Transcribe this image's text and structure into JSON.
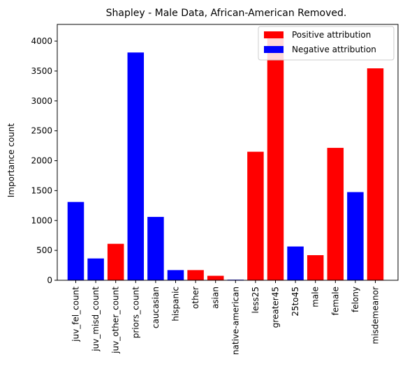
{
  "chart_data": {
    "type": "bar",
    "title": "Shapley - Male Data, African-American Removed.",
    "xlabel": "",
    "ylabel": "Importance count",
    "ylim": [
      0,
      4280
    ],
    "yticks": [
      0,
      500,
      1000,
      1500,
      2000,
      2500,
      3000,
      3500,
      4000
    ],
    "grid": false,
    "legend_placement": "top-right",
    "colors": {
      "positive": "#ff0000",
      "negative": "#0000ff"
    },
    "legend": [
      {
        "label": "Positive attribution",
        "key": "positive"
      },
      {
        "label": "Negative attribution",
        "key": "negative"
      }
    ],
    "categories": [
      "juv_fel_count",
      "juv_misd_count",
      "juv_other_count",
      "priors_count",
      "caucasian",
      "hispanic",
      "other",
      "asian",
      "native-american",
      "less25",
      "greater45",
      "25to45",
      "male",
      "female",
      "felony",
      "misdemeanor"
    ],
    "values": [
      1310,
      365,
      610,
      3810,
      1060,
      170,
      170,
      75,
      10,
      2150,
      4070,
      565,
      420,
      2215,
      1475,
      3545
    ],
    "attribution": [
      "negative",
      "negative",
      "positive",
      "negative",
      "negative",
      "negative",
      "positive",
      "positive",
      "negative",
      "positive",
      "positive",
      "negative",
      "positive",
      "positive",
      "negative",
      "positive"
    ]
  }
}
